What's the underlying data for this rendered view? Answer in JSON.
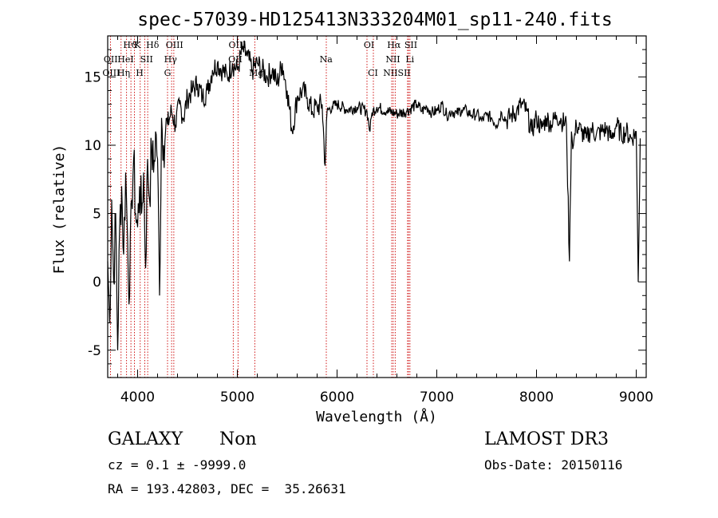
{
  "chart_data": {
    "type": "line",
    "title": "spec-57039-HD125413N333204M01_sp11-240.fits",
    "xlabel": "Wavelength (Å)",
    "ylabel": "Flux (relative)",
    "xlim": [
      3700,
      9100
    ],
    "ylim": [
      -7,
      18
    ],
    "xticks": [
      4000,
      5000,
      6000,
      7000,
      8000,
      9000
    ],
    "yticks": [
      -5,
      0,
      5,
      10,
      15
    ],
    "series": [
      {
        "name": "flux",
        "x": [
          3700,
          3720,
          3740,
          3760,
          3780,
          3800,
          3820,
          3840,
          3860,
          3880,
          3900,
          3920,
          3940,
          3960,
          3980,
          4000,
          4020,
          4040,
          4060,
          4080,
          4100,
          4120,
          4140,
          4160,
          4180,
          4200,
          4220,
          4240,
          4260,
          4280,
          4300,
          4340,
          4380,
          4420,
          4460,
          4500,
          4550,
          4600,
          4650,
          4700,
          4750,
          4800,
          4850,
          4900,
          4950,
          5000,
          5050,
          5100,
          5150,
          5200,
          5250,
          5300,
          5350,
          5400,
          5450,
          5500,
          5550,
          5600,
          5650,
          5700,
          5750,
          5800,
          5850,
          5880,
          5900,
          5950,
          6000,
          6100,
          6200,
          6300,
          6330,
          6350,
          6400,
          6500,
          6600,
          6700,
          6800,
          6850,
          6900,
          6950,
          7000,
          7050,
          7100,
          7150,
          7200,
          7250,
          7300,
          7350,
          7400,
          7450,
          7500,
          7550,
          7600,
          7650,
          7700,
          7750,
          7800,
          7850,
          7900,
          7950,
          8000,
          8050,
          8100,
          8150,
          8200,
          8250,
          8300,
          8330,
          8350,
          8370,
          8400,
          8450,
          8500,
          8550,
          8600,
          8650,
          8700,
          8750,
          8800,
          8850,
          8900,
          8950,
          9000,
          9020,
          9040
        ],
        "values": [
          1.5,
          -3,
          6,
          0,
          5,
          -5,
          4,
          7,
          2,
          8,
          3,
          -1,
          6,
          9,
          5,
          4,
          7,
          5,
          8,
          1,
          9,
          6,
          10,
          8,
          11,
          9,
          -1,
          12,
          10,
          11,
          11.5,
          12.5,
          11.5,
          13,
          12,
          13.5,
          14,
          14.5,
          13.5,
          14,
          15.5,
          16,
          15.5,
          15,
          16,
          15.5,
          17,
          16.5,
          15.5,
          16,
          15.5,
          15,
          15.5,
          14.5,
          16,
          14,
          11,
          13.5,
          14,
          13.5,
          12.5,
          12.8,
          13,
          8.5,
          12.5,
          12.8,
          13,
          12.6,
          12.8,
          12.5,
          11,
          12.4,
          12.8,
          12.5,
          12.3,
          12.5,
          13,
          12.5,
          12.8,
          12.4,
          12.5,
          13,
          12.2,
          12.5,
          12.3,
          12.6,
          12.5,
          12.2,
          12.3,
          11.8,
          12.2,
          12,
          11.5,
          12.4,
          11.8,
          12.2,
          12.5,
          13,
          12.5,
          11,
          12,
          11.2,
          12,
          11.5,
          12.2,
          11.8,
          11.5,
          1.5,
          11,
          10,
          11.5,
          11,
          10.5,
          11.2,
          10.8,
          11,
          11.2,
          10.5,
          11.5,
          10.8,
          11,
          10.5,
          11,
          0,
          10.5
        ]
      }
    ],
    "lines": [
      {
        "x": 3728,
        "labels": [
          "OII"
        ]
      },
      {
        "x": 3834,
        "labels": [
          "Hη"
        ]
      },
      {
        "x": 3889,
        "labels": [
          "Hζ"
        ]
      },
      {
        "x": 3933,
        "labels": [
          "K"
        ]
      },
      {
        "x": 3968,
        "labels": [
          "H"
        ]
      },
      {
        "x": 4026,
        "labels": [
          "HeI"
        ]
      },
      {
        "x": 4101,
        "labels": [
          "Hδ"
        ]
      },
      {
        "x": 4072,
        "labels": [
          "SII"
        ]
      },
      {
        "x": 4300,
        "labels": [
          "G"
        ]
      },
      {
        "x": 4341,
        "labels": [
          "Hγ"
        ]
      },
      {
        "x": 4363,
        "labels": [
          "OIII"
        ]
      },
      {
        "x": 4959,
        "labels": [
          "OIII"
        ]
      },
      {
        "x": 5007,
        "labels": [
          "OIII"
        ]
      },
      {
        "x": 5175,
        "labels": [
          "Mg"
        ]
      },
      {
        "x": 5892,
        "labels": [
          "Na"
        ]
      },
      {
        "x": 6300,
        "labels": [
          "OI"
        ]
      },
      {
        "x": 6364,
        "labels": [
          "OI"
        ]
      },
      {
        "x": 6548,
        "labels": [
          "NII"
        ]
      },
      {
        "x": 6563,
        "labels": [
          "Hα"
        ]
      },
      {
        "x": 6583,
        "labels": [
          "NII"
        ]
      },
      {
        "x": 6707,
        "labels": [
          "Li"
        ]
      },
      {
        "x": 6717,
        "labels": [
          "SII"
        ]
      },
      {
        "x": 6731,
        "labels": [
          "SII"
        ]
      }
    ],
    "line_labels": [
      {
        "text": "Hϑ",
        "wave": 3925
      },
      {
        "text": "K",
        "wave": 4000
      },
      {
        "text": "Hδ",
        "wave": 4150
      },
      {
        "text": "OIII",
        "wave": 4370
      },
      {
        "text": "OIII",
        "wave": 5000
      },
      {
        "text": "OI",
        "wave": 6320
      },
      {
        "text": "Hα",
        "wave": 6570
      },
      {
        "text": "SII",
        "wave": 6740
      },
      {
        "text": "OII",
        "wave": 3730
      },
      {
        "text": "HeI",
        "wave": 3880
      },
      {
        "text": "SII",
        "wave": 4090
      },
      {
        "text": "Hγ",
        "wave": 4330
      },
      {
        "text": "OII",
        "wave": 4980
      },
      {
        "text": "Na",
        "wave": 5890
      },
      {
        "text": "NII",
        "wave": 6560
      },
      {
        "text": "Li",
        "wave": 6730
      },
      {
        "text": "OIII",
        "wave": 3735
      },
      {
        "text": "Hη",
        "wave": 3860
      },
      {
        "text": "H",
        "wave": 4020
      },
      {
        "text": "G",
        "wave": 4300
      },
      {
        "text": "Mg",
        "wave": 5190
      },
      {
        "text": "CI",
        "wave": 6360
      },
      {
        "text": "NIISII",
        "wave": 6600
      }
    ]
  },
  "info": {
    "class": "GALAXY",
    "subclass": "Non",
    "survey": "LAMOST DR3",
    "cz_line": "cz = 0.1 ± -9999.0",
    "obs_date_line": "Obs-Date: 20150116",
    "radec_line": "RA = 193.42803, DEC =  35.26631"
  },
  "colors": {
    "line_marker": "#cc0000",
    "spectrum": "#000000"
  }
}
